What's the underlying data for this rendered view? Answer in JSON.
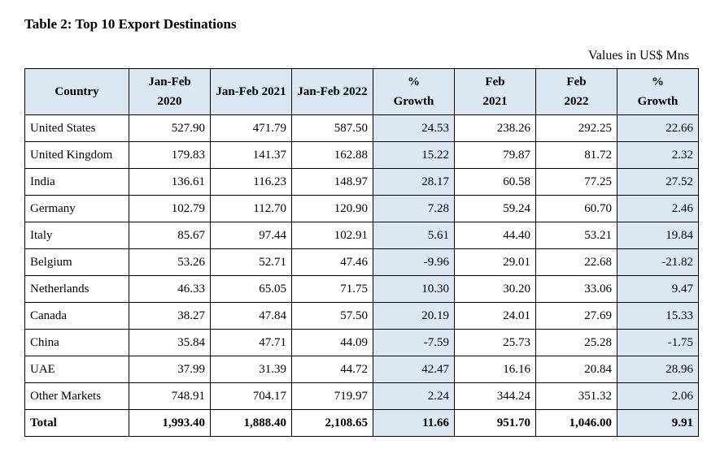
{
  "title": "Table 2: Top 10 Export Destinations",
  "units_label": "Values in US$ Mns",
  "table": {
    "columns": {
      "country": "Country",
      "jf2020_l1": "Jan-Feb",
      "jf2020_l2": "2020",
      "jf2021": "Jan-Feb 2021",
      "jf2022": "Jan-Feb 2022",
      "growth1_l1": "%",
      "growth1_l2": "Growth",
      "feb2021_l1": "Feb",
      "feb2021_l2": "2021",
      "feb2022_l1": "Feb",
      "feb2022_l2": "2022",
      "growth2_l1": "%",
      "growth2_l2": "Growth"
    },
    "rows": [
      {
        "country": "United States",
        "jf2020": "527.90",
        "jf2021": "471.79",
        "jf2022": "587.50",
        "g1": "24.53",
        "feb2021": "238.26",
        "feb2022": "292.25",
        "g2": "22.66"
      },
      {
        "country": "United Kingdom",
        "jf2020": "179.83",
        "jf2021": "141.37",
        "jf2022": "162.88",
        "g1": "15.22",
        "feb2021": "79.87",
        "feb2022": "81.72",
        "g2": "2.32"
      },
      {
        "country": "India",
        "jf2020": "136.61",
        "jf2021": "116.23",
        "jf2022": "148.97",
        "g1": "28.17",
        "feb2021": "60.58",
        "feb2022": "77.25",
        "g2": "27.52"
      },
      {
        "country": "Germany",
        "jf2020": "102.79",
        "jf2021": "112.70",
        "jf2022": "120.90",
        "g1": "7.28",
        "feb2021": "59.24",
        "feb2022": "60.70",
        "g2": "2.46"
      },
      {
        "country": "Italy",
        "jf2020": "85.67",
        "jf2021": "97.44",
        "jf2022": "102.91",
        "g1": "5.61",
        "feb2021": "44.40",
        "feb2022": "53.21",
        "g2": "19.84"
      },
      {
        "country": "Belgium",
        "jf2020": "53.26",
        "jf2021": "52.71",
        "jf2022": "47.46",
        "g1": "-9.96",
        "feb2021": "29.01",
        "feb2022": "22.68",
        "g2": "-21.82"
      },
      {
        "country": "Netherlands",
        "jf2020": "46.33",
        "jf2021": "65.05",
        "jf2022": "71.75",
        "g1": "10.30",
        "feb2021": "30.20",
        "feb2022": "33.06",
        "g2": "9.47"
      },
      {
        "country": "Canada",
        "jf2020": "38.27",
        "jf2021": "47.84",
        "jf2022": "57.50",
        "g1": "20.19",
        "feb2021": "24.01",
        "feb2022": "27.69",
        "g2": "15.33"
      },
      {
        "country": "China",
        "jf2020": "35.84",
        "jf2021": "47.71",
        "jf2022": "44.09",
        "g1": "-7.59",
        "feb2021": "25.73",
        "feb2022": "25.28",
        "g2": "-1.75"
      },
      {
        "country": "UAE",
        "jf2020": "37.99",
        "jf2021": "31.39",
        "jf2022": "44.72",
        "g1": "42.47",
        "feb2021": "16.16",
        "feb2022": "20.84",
        "g2": "28.96"
      },
      {
        "country": "Other Markets",
        "jf2020": "748.91",
        "jf2021": "704.17",
        "jf2022": "719.97",
        "g1": "2.24",
        "feb2021": "344.24",
        "feb2022": "351.32",
        "g2": "2.06"
      }
    ],
    "total": {
      "country": "Total",
      "jf2020": "1,993.40",
      "jf2021": "1,888.40",
      "jf2022": "2,108.65",
      "g1": "11.66",
      "feb2021": "951.70",
      "feb2022": "1,046.00",
      "g2": "9.91"
    },
    "colors": {
      "header_bg": "#dbe8f3",
      "growth_bg": "#dbe8f3",
      "cell_bg": "#ffffff",
      "border": "#000000",
      "text": "#000000"
    },
    "font": {
      "family": "Times New Roman",
      "title_size_pt": 13,
      "body_size_pt": 11
    }
  }
}
